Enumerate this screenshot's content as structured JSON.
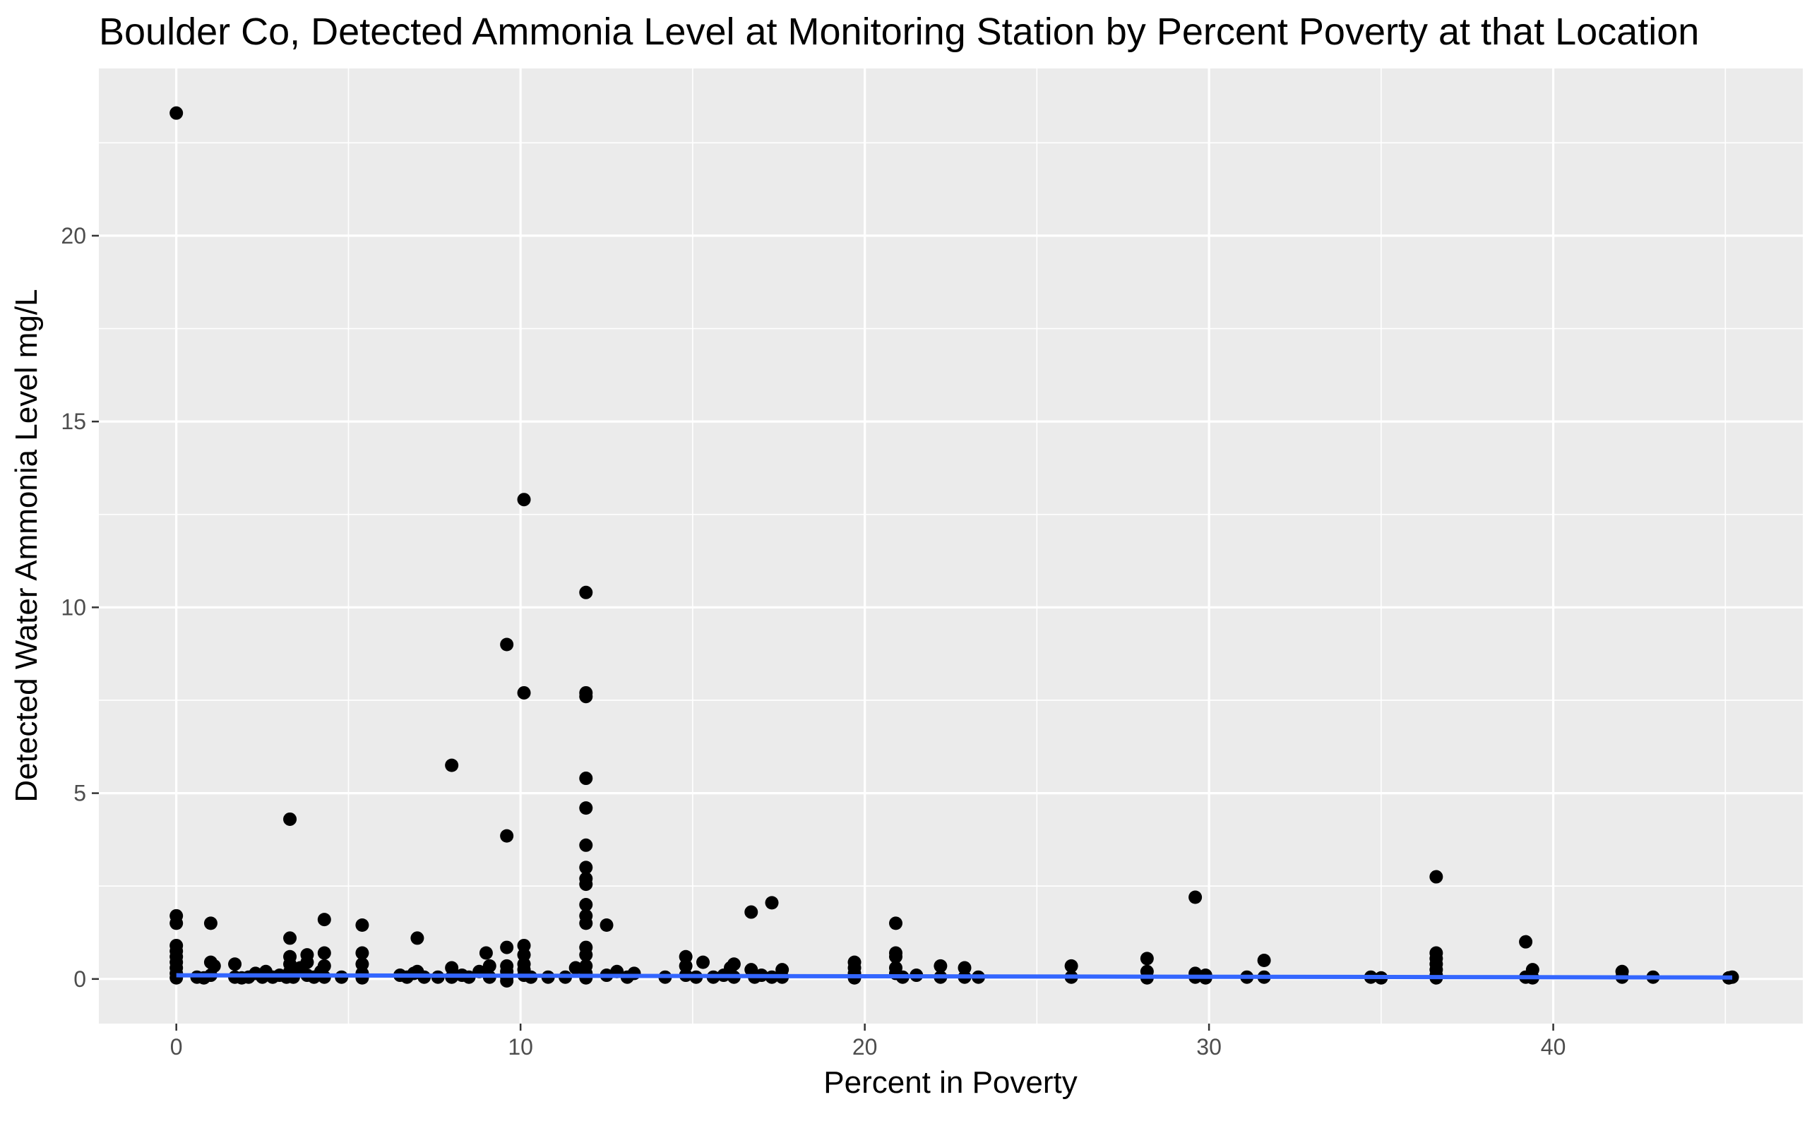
{
  "chart_data": {
    "type": "scatter",
    "title": "Boulder Co, Detected Ammonia Level at Monitoring Station by Percent Poverty at that Location",
    "xlabel": "Percent in Poverty",
    "ylabel": "Detected Water Ammonia Level mg/L",
    "xlim": [
      -2.25,
      47.25
    ],
    "ylim": [
      -1.2,
      24.5
    ],
    "x_ticks": [
      0,
      10,
      20,
      30,
      40
    ],
    "y_ticks": [
      0,
      5,
      10,
      15,
      20
    ],
    "x_tick_labels": [
      "0",
      "10",
      "20",
      "30",
      "40"
    ],
    "y_tick_labels": [
      "0",
      "5",
      "10",
      "15",
      "20"
    ],
    "grid": true,
    "legend": "none",
    "colors": {
      "panel_background": "#EBEBEB",
      "grid": "#FFFFFF",
      "points": "#000000",
      "trend_line": "#3366FF",
      "tick_labels": "#4D4D4D"
    },
    "points": [
      {
        "x": 0,
        "y": 23.3
      },
      {
        "x": 0,
        "y": 1.7
      },
      {
        "x": 0,
        "y": 1.5
      },
      {
        "x": 0,
        "y": 0.9
      },
      {
        "x": 0,
        "y": 0.75
      },
      {
        "x": 0,
        "y": 0.6
      },
      {
        "x": 0,
        "y": 0.45
      },
      {
        "x": 0,
        "y": 0.3
      },
      {
        "x": 0,
        "y": 0.15
      },
      {
        "x": 0,
        "y": 0.03
      },
      {
        "x": 0.6,
        "y": 0.05
      },
      {
        "x": 0.8,
        "y": 0.03
      },
      {
        "x": 1.0,
        "y": 1.5
      },
      {
        "x": 1.0,
        "y": 0.45
      },
      {
        "x": 1.0,
        "y": 0.1
      },
      {
        "x": 1.1,
        "y": 0.35
      },
      {
        "x": 1.7,
        "y": 0.4
      },
      {
        "x": 1.7,
        "y": 0.05
      },
      {
        "x": 1.9,
        "y": 0.03
      },
      {
        "x": 2.1,
        "y": 0.05
      },
      {
        "x": 2.3,
        "y": 0.15
      },
      {
        "x": 2.5,
        "y": 0.05
      },
      {
        "x": 2.6,
        "y": 0.2
      },
      {
        "x": 2.8,
        "y": 0.05
      },
      {
        "x": 3.0,
        "y": 0.1
      },
      {
        "x": 3.2,
        "y": 0.05
      },
      {
        "x": 3.3,
        "y": 4.3
      },
      {
        "x": 3.3,
        "y": 1.1
      },
      {
        "x": 3.3,
        "y": 0.6
      },
      {
        "x": 3.3,
        "y": 0.4
      },
      {
        "x": 3.3,
        "y": 0.2
      },
      {
        "x": 3.4,
        "y": 0.05
      },
      {
        "x": 3.6,
        "y": 0.3
      },
      {
        "x": 3.8,
        "y": 0.65
      },
      {
        "x": 3.8,
        "y": 0.45
      },
      {
        "x": 3.8,
        "y": 0.1
      },
      {
        "x": 4.0,
        "y": 0.05
      },
      {
        "x": 4.2,
        "y": 0.2
      },
      {
        "x": 4.3,
        "y": 1.6
      },
      {
        "x": 4.3,
        "y": 0.7
      },
      {
        "x": 4.3,
        "y": 0.35
      },
      {
        "x": 4.3,
        "y": 0.05
      },
      {
        "x": 4.8,
        "y": 0.05
      },
      {
        "x": 5.4,
        "y": 1.45
      },
      {
        "x": 5.4,
        "y": 0.7
      },
      {
        "x": 5.4,
        "y": 0.4
      },
      {
        "x": 5.4,
        "y": 0.15
      },
      {
        "x": 5.4,
        "y": 0.03
      },
      {
        "x": 6.5,
        "y": 0.1
      },
      {
        "x": 6.7,
        "y": 0.05
      },
      {
        "x": 6.9,
        "y": 0.15
      },
      {
        "x": 7.0,
        "y": 1.1
      },
      {
        "x": 7.0,
        "y": 0.2
      },
      {
        "x": 7.2,
        "y": 0.05
      },
      {
        "x": 7.6,
        "y": 0.05
      },
      {
        "x": 8.0,
        "y": 5.75
      },
      {
        "x": 8.0,
        "y": 0.3
      },
      {
        "x": 8.0,
        "y": 0.05
      },
      {
        "x": 8.3,
        "y": 0.1
      },
      {
        "x": 8.5,
        "y": 0.05
      },
      {
        "x": 8.8,
        "y": 0.2
      },
      {
        "x": 9.0,
        "y": 0.7
      },
      {
        "x": 9.1,
        "y": 0.35
      },
      {
        "x": 9.1,
        "y": 0.05
      },
      {
        "x": 9.6,
        "y": 9.0
      },
      {
        "x": 9.6,
        "y": 3.85
      },
      {
        "x": 9.6,
        "y": 0.85
      },
      {
        "x": 9.6,
        "y": 0.35
      },
      {
        "x": 9.6,
        "y": 0.2
      },
      {
        "x": 9.6,
        "y": 0.05
      },
      {
        "x": 9.6,
        "y": -0.05
      },
      {
        "x": 10.1,
        "y": 12.9
      },
      {
        "x": 10.1,
        "y": 7.7
      },
      {
        "x": 10.1,
        "y": 0.9
      },
      {
        "x": 10.1,
        "y": 0.65
      },
      {
        "x": 10.1,
        "y": 0.4
      },
      {
        "x": 10.1,
        "y": 0.25
      },
      {
        "x": 10.1,
        "y": 0.1
      },
      {
        "x": 10.3,
        "y": 0.05
      },
      {
        "x": 10.8,
        "y": 0.05
      },
      {
        "x": 11.3,
        "y": 0.05
      },
      {
        "x": 11.6,
        "y": 0.3
      },
      {
        "x": 11.9,
        "y": 10.4
      },
      {
        "x": 11.9,
        "y": 7.7
      },
      {
        "x": 11.9,
        "y": 7.6
      },
      {
        "x": 11.9,
        "y": 5.4
      },
      {
        "x": 11.9,
        "y": 4.6
      },
      {
        "x": 11.9,
        "y": 3.6
      },
      {
        "x": 11.9,
        "y": 3.0
      },
      {
        "x": 11.9,
        "y": 2.7
      },
      {
        "x": 11.9,
        "y": 2.55
      },
      {
        "x": 11.9,
        "y": 2.0
      },
      {
        "x": 11.9,
        "y": 1.7
      },
      {
        "x": 11.9,
        "y": 1.5
      },
      {
        "x": 11.9,
        "y": 0.85
      },
      {
        "x": 11.9,
        "y": 0.65
      },
      {
        "x": 11.9,
        "y": 0.35
      },
      {
        "x": 11.9,
        "y": 0.15
      },
      {
        "x": 11.9,
        "y": 0.03
      },
      {
        "x": 12.5,
        "y": 1.45
      },
      {
        "x": 12.5,
        "y": 0.1
      },
      {
        "x": 12.8,
        "y": 0.2
      },
      {
        "x": 13.1,
        "y": 0.05
      },
      {
        "x": 13.3,
        "y": 0.15
      },
      {
        "x": 14.2,
        "y": 0.05
      },
      {
        "x": 14.8,
        "y": 0.6
      },
      {
        "x": 14.8,
        "y": 0.35
      },
      {
        "x": 14.8,
        "y": 0.1
      },
      {
        "x": 15.1,
        "y": 0.05
      },
      {
        "x": 15.3,
        "y": 0.45
      },
      {
        "x": 15.6,
        "y": 0.05
      },
      {
        "x": 15.9,
        "y": 0.1
      },
      {
        "x": 16.1,
        "y": 0.3
      },
      {
        "x": 16.2,
        "y": 0.4
      },
      {
        "x": 16.2,
        "y": 0.05
      },
      {
        "x": 16.7,
        "y": 1.8
      },
      {
        "x": 16.7,
        "y": 0.25
      },
      {
        "x": 16.8,
        "y": 0.05
      },
      {
        "x": 17.0,
        "y": 0.1
      },
      {
        "x": 17.3,
        "y": 2.05
      },
      {
        "x": 17.3,
        "y": 0.05
      },
      {
        "x": 17.6,
        "y": 0.25
      },
      {
        "x": 17.6,
        "y": 0.05
      },
      {
        "x": 19.7,
        "y": 0.45
      },
      {
        "x": 19.7,
        "y": 0.3
      },
      {
        "x": 19.7,
        "y": 0.15
      },
      {
        "x": 19.7,
        "y": 0.03
      },
      {
        "x": 20.9,
        "y": 1.5
      },
      {
        "x": 20.9,
        "y": 0.7
      },
      {
        "x": 20.9,
        "y": 0.6
      },
      {
        "x": 20.9,
        "y": 0.3
      },
      {
        "x": 20.9,
        "y": 0.15
      },
      {
        "x": 21.1,
        "y": 0.05
      },
      {
        "x": 21.5,
        "y": 0.1
      },
      {
        "x": 22.2,
        "y": 0.35
      },
      {
        "x": 22.2,
        "y": 0.05
      },
      {
        "x": 22.9,
        "y": 0.3
      },
      {
        "x": 22.9,
        "y": 0.05
      },
      {
        "x": 23.3,
        "y": 0.05
      },
      {
        "x": 26.0,
        "y": 0.35
      },
      {
        "x": 26.0,
        "y": 0.05
      },
      {
        "x": 28.2,
        "y": 0.55
      },
      {
        "x": 28.2,
        "y": 0.2
      },
      {
        "x": 28.2,
        "y": 0.03
      },
      {
        "x": 29.6,
        "y": 2.2
      },
      {
        "x": 29.6,
        "y": 0.15
      },
      {
        "x": 29.6,
        "y": 0.05
      },
      {
        "x": 29.9,
        "y": 0.1
      },
      {
        "x": 29.9,
        "y": 0.03
      },
      {
        "x": 31.1,
        "y": 0.05
      },
      {
        "x": 31.6,
        "y": 0.5
      },
      {
        "x": 31.6,
        "y": 0.05
      },
      {
        "x": 34.7,
        "y": 0.05
      },
      {
        "x": 35.0,
        "y": 0.03
      },
      {
        "x": 36.6,
        "y": 2.75
      },
      {
        "x": 36.6,
        "y": 0.7
      },
      {
        "x": 36.6,
        "y": 0.55
      },
      {
        "x": 36.6,
        "y": 0.4
      },
      {
        "x": 36.6,
        "y": 0.25
      },
      {
        "x": 36.6,
        "y": 0.1
      },
      {
        "x": 36.6,
        "y": 0.03
      },
      {
        "x": 39.2,
        "y": 1.0
      },
      {
        "x": 39.2,
        "y": 0.05
      },
      {
        "x": 39.4,
        "y": 0.25
      },
      {
        "x": 39.4,
        "y": 0.03
      },
      {
        "x": 42.0,
        "y": 0.2
      },
      {
        "x": 42.0,
        "y": 0.05
      },
      {
        "x": 42.9,
        "y": 0.05
      },
      {
        "x": 45.1,
        "y": 0.03
      },
      {
        "x": 45.2,
        "y": 0.05
      }
    ],
    "trend_line": {
      "method": "linear",
      "x": [
        0,
        45.2
      ],
      "y": [
        0.1,
        0.04
      ]
    }
  }
}
